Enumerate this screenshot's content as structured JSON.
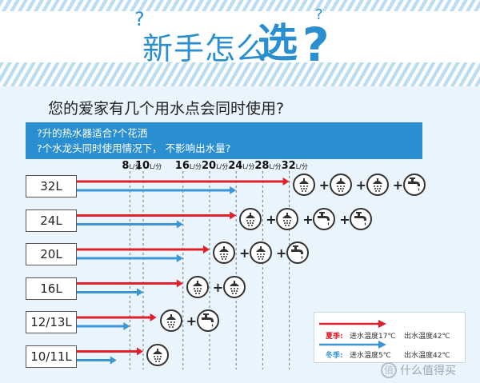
{
  "header": {
    "q1": "?",
    "title_main": "新手怎么",
    "title_emphasis": "选",
    "q_big": "?",
    "q2": "?"
  },
  "question": "您的爱家有几个用水点会同时使用?",
  "note": {
    "line1": "?升的热水器适合?个花洒",
    "line2": "?个水龙头同时使用情况下，  不影响出水量?"
  },
  "colors": {
    "summer": "#e0202a",
    "winter": "#3a96d6",
    "accent": "#2a8fd0"
  },
  "flow_rates": [
    {
      "value": "8",
      "unit": "L/分",
      "lpm": 8
    },
    {
      "value": "10",
      "unit": "L/分",
      "lpm": 10
    },
    {
      "value": "16",
      "unit": "L/分",
      "lpm": 16
    },
    {
      "value": "20",
      "unit": "L/分",
      "lpm": 20
    },
    {
      "value": "24",
      "unit": "L/分",
      "lpm": 24
    },
    {
      "value": "28",
      "unit": "L/分",
      "lpm": 28
    },
    {
      "value": "32",
      "unit": "L/分",
      "lpm": 32
    }
  ],
  "rows": [
    {
      "capacity": "32L",
      "summer_lpm": 32,
      "winter_lpm": 24,
      "outlets": [
        "shower-icon",
        "shower-icon",
        "shower-icon",
        "faucet-icon"
      ]
    },
    {
      "capacity": "24L",
      "summer_lpm": 24,
      "winter_lpm": 16,
      "outlets": [
        "shower-icon",
        "shower-icon",
        "faucet-icon",
        "faucet-icon"
      ]
    },
    {
      "capacity": "20L",
      "summer_lpm": 20,
      "winter_lpm": 16,
      "outlets": [
        "shower-icon",
        "shower-icon",
        "faucet-icon"
      ]
    },
    {
      "capacity": "16L",
      "summer_lpm": 16,
      "winter_lpm": 10,
      "outlets": [
        "shower-icon",
        "shower-icon"
      ]
    },
    {
      "capacity": "12/13L",
      "summer_lpm": 12,
      "winter_lpm": 8,
      "outlets": [
        "shower-icon",
        "faucet-icon"
      ]
    },
    {
      "capacity": "10/11L",
      "summer_lpm": 10,
      "winter_lpm": 6,
      "outlets": [
        "shower-icon"
      ]
    }
  ],
  "plus_sign": "+",
  "legend": {
    "summer": {
      "season": "夏季:",
      "inlet": "进水温度17℃",
      "outlet": "出水温度42℃"
    },
    "winter": {
      "season": "冬季:",
      "inlet": "进水温度5℃",
      "outlet": "出水温度42℃"
    }
  },
  "watermark": "什么值得买",
  "watermark_icon": "值"
}
